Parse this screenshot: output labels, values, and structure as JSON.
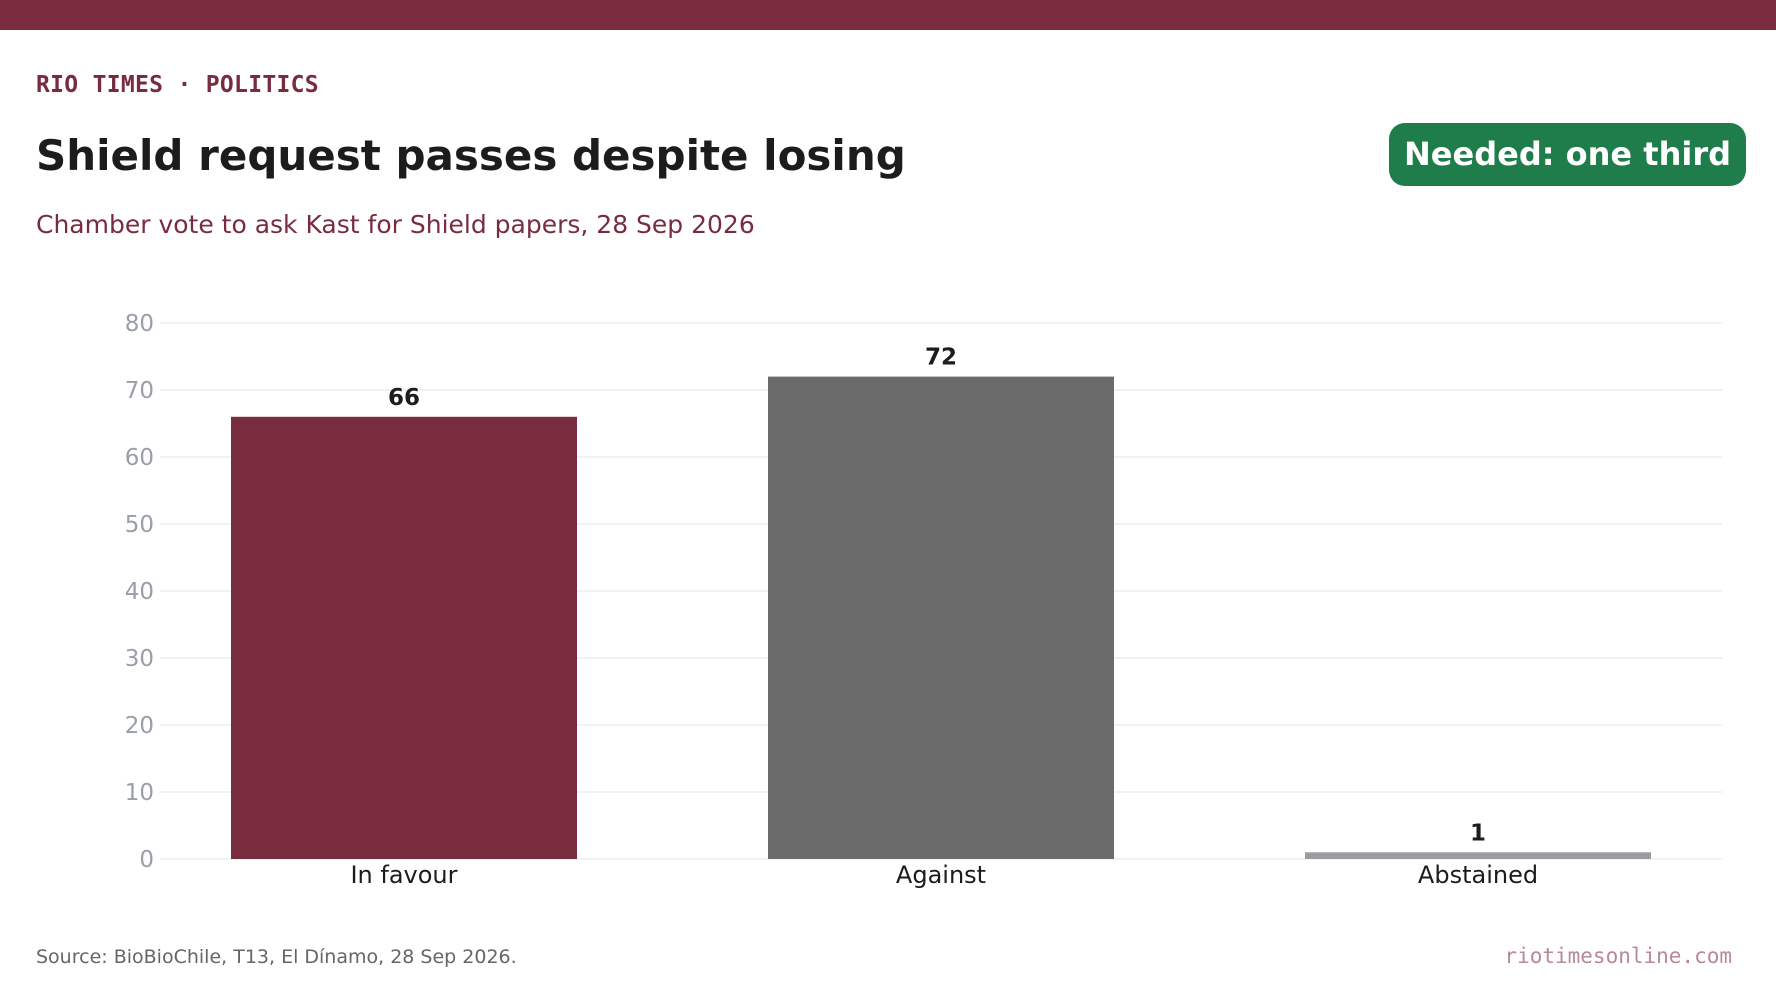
{
  "header": {
    "kicker": "RIO TIMES · POLITICS",
    "title": "Shield request passes despite losing",
    "badge": "Needed: one third",
    "subtitle": "Chamber vote to ask Kast for Shield papers, 28 Sep 2026"
  },
  "footer": {
    "source": "Source: BioBioChile, T13, El Dínamo, 28 Sep 2026.",
    "site": "riotimesonline.com"
  },
  "colors": {
    "brand": "#7a2c3f",
    "badge": "#1e7d4a",
    "in_favour": "#7a2c3f",
    "against": "#6b6b6b",
    "abstained": "#9a9ca0",
    "grid": "#e6e6e6",
    "tick": "#9a9ea8"
  },
  "chart_data": {
    "type": "bar",
    "categories": [
      "In favour",
      "Against",
      "Abstained"
    ],
    "values": [
      66,
      72,
      1
    ],
    "bar_colors": [
      "#7a2c3f",
      "#6b6b6b",
      "#9a9ca0"
    ],
    "ylim": [
      0,
      80
    ],
    "yticks": [
      0,
      10,
      20,
      30,
      40,
      50,
      60,
      70,
      80
    ],
    "grid": true,
    "xlabel": "",
    "ylabel": ""
  }
}
